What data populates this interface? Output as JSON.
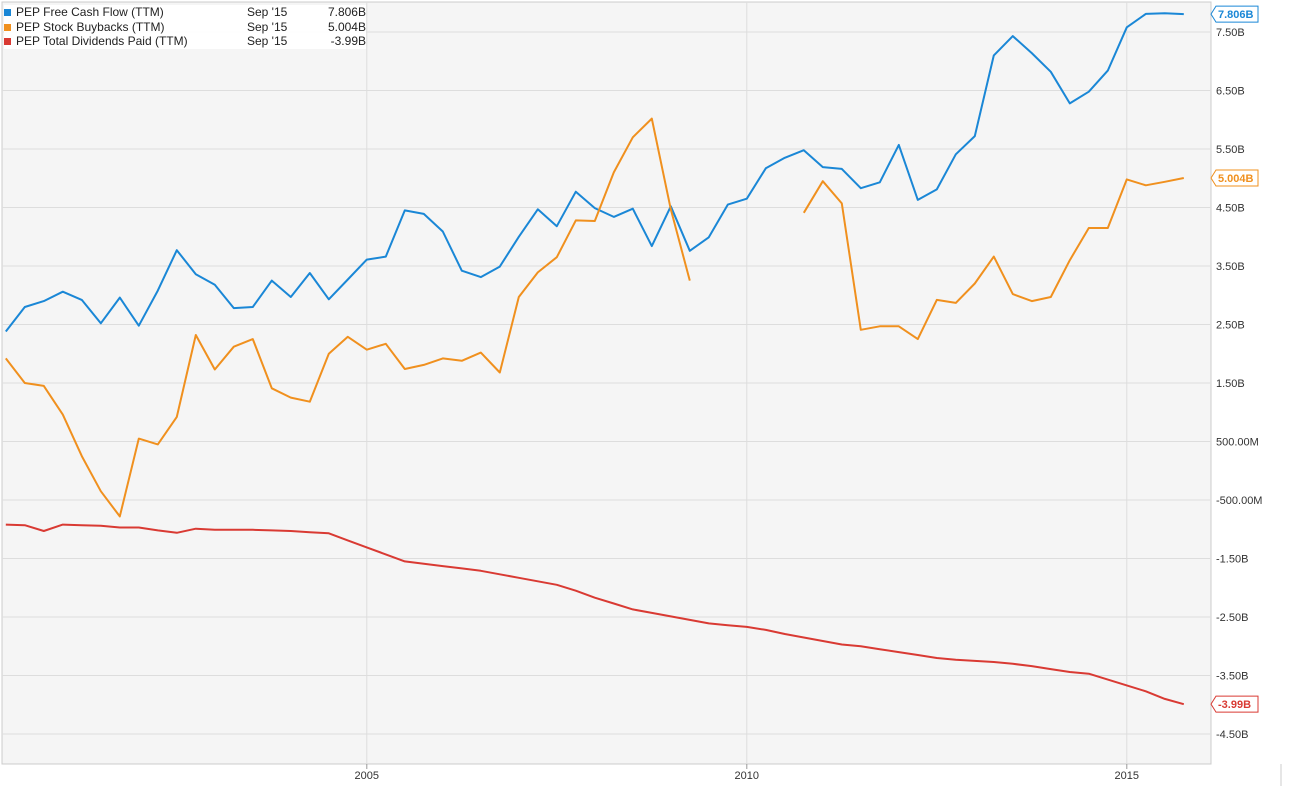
{
  "chart_data": {
    "type": "line",
    "x_axis": {
      "ticks": [
        "2005",
        "2010",
        "2015"
      ]
    },
    "y_axis": {
      "unit": "B",
      "ylim": [
        -5.0,
        8.0
      ],
      "ticks": [
        {
          "value": 7.5,
          "label": "7.50B"
        },
        {
          "value": 6.5,
          "label": "6.50B"
        },
        {
          "value": 5.5,
          "label": "5.50B"
        },
        {
          "value": 4.5,
          "label": "4.50B"
        },
        {
          "value": 3.5,
          "label": "3.50B"
        },
        {
          "value": 2.5,
          "label": "2.50B"
        },
        {
          "value": 1.5,
          "label": "1.50B"
        },
        {
          "value": 0.5,
          "label": "500.00M"
        },
        {
          "value": -0.5,
          "label": "-500.00M"
        },
        {
          "value": -1.5,
          "label": "-1.50B"
        },
        {
          "value": -2.5,
          "label": "-2.50B"
        },
        {
          "value": -3.5,
          "label": "-3.50B"
        },
        {
          "value": -4.5,
          "label": "-4.50B"
        }
      ]
    },
    "grid": true,
    "legend_position": "top-left",
    "series": [
      {
        "name": "PEP Free Cash Flow (TTM)",
        "legend_date": "Sep '15",
        "legend_value": "7.806B",
        "end_label": "7.806B",
        "color": "#1a87d6",
        "x": [
          2000.25,
          2000.5,
          2000.75,
          2001.0,
          2001.25,
          2001.5,
          2001.75,
          2002.0,
          2002.25,
          2002.5,
          2002.75,
          2003.0,
          2003.25,
          2003.5,
          2003.75,
          2004.0,
          2004.25,
          2004.5,
          2004.75,
          2005.0,
          2005.25,
          2005.5,
          2005.75,
          2006.0,
          2006.25,
          2006.5,
          2006.75,
          2007.0,
          2007.25,
          2007.5,
          2007.75,
          2008.0,
          2008.25,
          2008.5,
          2008.75,
          2009.0,
          2009.25,
          2009.5,
          2009.75,
          2010.0,
          2010.25,
          2010.5,
          2010.75,
          2011.0,
          2011.25,
          2011.5,
          2011.75,
          2012.0,
          2012.25,
          2012.5,
          2012.75,
          2013.0,
          2013.25,
          2013.5,
          2013.75,
          2014.0,
          2014.25,
          2014.5,
          2014.75,
          2015.0,
          2015.25,
          2015.5,
          2015.75
        ],
        "values": [
          2.38,
          2.8,
          2.9,
          3.06,
          2.92,
          2.52,
          2.96,
          2.48,
          3.08,
          3.77,
          3.36,
          3.18,
          2.78,
          2.8,
          3.25,
          2.97,
          3.38,
          2.93,
          3.27,
          3.61,
          3.66,
          4.45,
          4.39,
          4.09,
          3.42,
          3.31,
          3.49,
          4.0,
          4.47,
          4.18,
          4.77,
          4.49,
          4.34,
          4.48,
          3.84,
          4.52,
          3.76,
          3.99,
          4.55,
          4.65,
          5.17,
          5.35,
          5.48,
          5.19,
          5.16,
          4.83,
          4.93,
          5.57,
          4.63,
          4.81,
          5.41,
          5.72,
          7.1,
          7.43,
          7.14,
          6.82,
          6.28,
          6.48,
          6.84,
          7.58,
          7.81,
          7.82,
          7.806
        ]
      },
      {
        "name": "PEP Stock Buybacks (TTM)",
        "legend_date": "Sep '15",
        "legend_value": "5.004B",
        "end_label": "5.004B",
        "color": "#f0901e",
        "x": [
          2000.25,
          2000.5,
          2000.75,
          2001.0,
          2001.25,
          2001.5,
          2001.75,
          2002.0,
          2002.25,
          2002.5,
          2002.75,
          2003.0,
          2003.25,
          2003.5,
          2003.75,
          2004.0,
          2004.25,
          2004.5,
          2004.75,
          2005.0,
          2005.25,
          2005.5,
          2005.75,
          2006.0,
          2006.25,
          2006.5,
          2006.75,
          2007.0,
          2007.25,
          2007.5,
          2007.75,
          2008.0,
          2008.25,
          2008.5,
          2008.75,
          2009.0,
          2009.25,
          null,
          2010.75,
          2011.0,
          2011.25,
          2011.5,
          2011.75,
          2012.0,
          2012.25,
          2012.5,
          2012.75,
          2013.0,
          2013.25,
          2013.5,
          2013.75,
          2014.0,
          2014.25,
          2014.5,
          2014.75,
          2015.0,
          2015.25,
          2015.5,
          2015.75
        ],
        "values": [
          1.92,
          1.5,
          1.45,
          0.96,
          0.25,
          -0.35,
          -0.78,
          0.55,
          0.45,
          0.92,
          2.32,
          1.73,
          2.12,
          2.25,
          1.41,
          1.25,
          1.18,
          2.0,
          2.29,
          2.07,
          2.17,
          1.74,
          1.81,
          1.92,
          1.88,
          2.02,
          1.68,
          2.97,
          3.39,
          3.65,
          4.28,
          4.27,
          5.1,
          5.7,
          6.02,
          4.47,
          3.25,
          null,
          4.41,
          4.95,
          4.57,
          2.41,
          2.47,
          2.47,
          2.25,
          2.92,
          2.87,
          3.2,
          3.66,
          3.02,
          2.9,
          2.97,
          3.6,
          4.15,
          4.15,
          4.98,
          4.88,
          4.94,
          5.004
        ]
      },
      {
        "name": "PEP Total Dividends Paid (TTM)",
        "legend_date": "Sep '15",
        "legend_value": "-3.99B",
        "end_label": "-3.99B",
        "color": "#d93a33",
        "x": [
          2000.25,
          2000.5,
          2000.75,
          2001.0,
          2001.25,
          2001.5,
          2001.75,
          2002.0,
          2002.25,
          2002.5,
          2002.75,
          2003.0,
          2003.25,
          2003.5,
          2003.75,
          2004.0,
          2004.25,
          2004.5,
          2004.75,
          2005.0,
          2005.25,
          2005.5,
          2005.75,
          2006.0,
          2006.25,
          2006.5,
          2006.75,
          2007.0,
          2007.25,
          2007.5,
          2007.75,
          2008.0,
          2008.25,
          2008.5,
          2008.75,
          2009.0,
          2009.25,
          2009.5,
          2009.75,
          2010.0,
          2010.25,
          2010.5,
          2010.75,
          2011.0,
          2011.25,
          2011.5,
          2011.75,
          2012.0,
          2012.25,
          2012.5,
          2012.75,
          2013.0,
          2013.25,
          2013.5,
          2013.75,
          2014.0,
          2014.25,
          2014.5,
          2014.75,
          2015.0,
          2015.25,
          2015.5,
          2015.75
        ],
        "values": [
          -0.92,
          -0.93,
          -1.03,
          -0.92,
          -0.93,
          -0.94,
          -0.97,
          -0.97,
          -1.02,
          -1.06,
          -0.99,
          -1.01,
          -1.01,
          -1.01,
          -1.02,
          -1.03,
          -1.05,
          -1.07,
          -1.19,
          -1.31,
          -1.43,
          -1.55,
          -1.59,
          -1.63,
          -1.67,
          -1.71,
          -1.77,
          -1.83,
          -1.89,
          -1.95,
          -2.05,
          -2.17,
          -2.27,
          -2.37,
          -2.43,
          -2.49,
          -2.55,
          -2.61,
          -2.64,
          -2.67,
          -2.72,
          -2.79,
          -2.85,
          -2.91,
          -2.97,
          -3.0,
          -3.05,
          -3.1,
          -3.15,
          -3.2,
          -3.23,
          -3.25,
          -3.27,
          -3.3,
          -3.34,
          -3.39,
          -3.44,
          -3.47,
          -3.57,
          -3.67,
          -3.77,
          -3.9,
          -3.99
        ]
      }
    ]
  }
}
